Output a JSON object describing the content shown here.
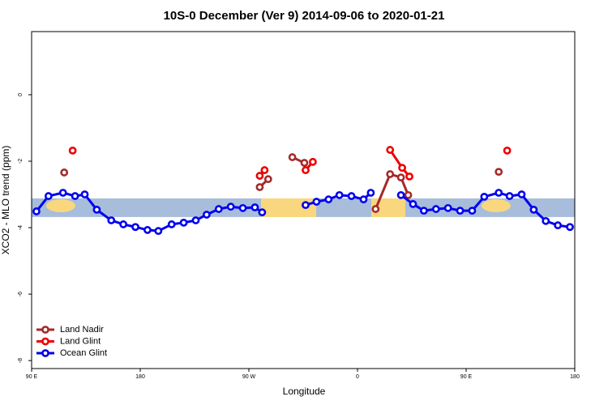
{
  "chart_data": {
    "type": "line",
    "title": "10S-0 December (Ver 9)   2014-09-06 to 2020-01-21",
    "x_label": "Longitude",
    "y_label": "XCO2 - MLO trend (ppm)",
    "xlim": [
      90,
      540
    ],
    "xticks": [
      {
        "value": 90,
        "label": "90 E"
      },
      180,
      {
        "value": 270,
        "label": "90 W"
      },
      {
        "value": 360,
        "label": "0"
      },
      {
        "value": 450,
        "label": "90 E"
      },
      {
        "value": 540,
        "label": "180"
      }
    ],
    "ylim": [
      -8.24,
      1.9
    ],
    "yticks": [
      0,
      -2,
      -4,
      -6,
      -8
    ],
    "band": [
      -3.68,
      -3.12
    ],
    "band_color": "#a7bddb",
    "legend": "bottom-left",
    "series": [
      {
        "name": "Land Nadir",
        "color": "#a52a2a",
        "x": [
          117,
          null,
          279,
          286,
          null,
          306,
          316,
          null,
          375,
          387,
          396,
          402,
          null,
          477
        ],
        "values": [
          -2.34,
          null,
          -2.78,
          -2.54,
          null,
          -1.88,
          -2.05,
          null,
          -3.44,
          -2.39,
          -2.49,
          -3.02,
          null,
          -2.32
        ]
      },
      {
        "name": "Land Glint",
        "color": "#ee0000",
        "x": [
          124,
          null,
          279,
          283,
          null,
          317,
          323,
          null,
          387,
          397,
          403,
          null,
          484
        ],
        "values": [
          -1.68,
          null,
          -2.44,
          -2.27,
          null,
          -2.27,
          -2.02,
          null,
          -1.66,
          -2.2,
          -2.46,
          null,
          -1.68
        ]
      },
      {
        "name": "Ocean Glint",
        "color": "#0000ee",
        "x": [
          94,
          104,
          116,
          126,
          134,
          144,
          156,
          166,
          176,
          186,
          195,
          206,
          216,
          226,
          235,
          245,
          255,
          265,
          275,
          281,
          null,
          317,
          326,
          336,
          345,
          355,
          365,
          371,
          null,
          396,
          406,
          415,
          425,
          435,
          445,
          455,
          465,
          477,
          486,
          496,
          506,
          516,
          526,
          536
        ],
        "values": [
          -3.51,
          -3.05,
          -2.95,
          -3.05,
          -3.0,
          -3.46,
          -3.78,
          -3.9,
          -3.98,
          -4.07,
          -4.1,
          -3.9,
          -3.85,
          -3.78,
          -3.61,
          -3.44,
          -3.37,
          -3.41,
          -3.39,
          -3.54,
          null,
          -3.32,
          -3.22,
          -3.15,
          -3.02,
          -3.05,
          -3.15,
          -2.95,
          null,
          -3.02,
          -3.29,
          -3.49,
          -3.44,
          -3.41,
          -3.49,
          -3.49,
          -3.07,
          -2.95,
          -3.05,
          -3.0,
          -3.46,
          -3.8,
          -3.93,
          -3.98
        ]
      }
    ]
  }
}
